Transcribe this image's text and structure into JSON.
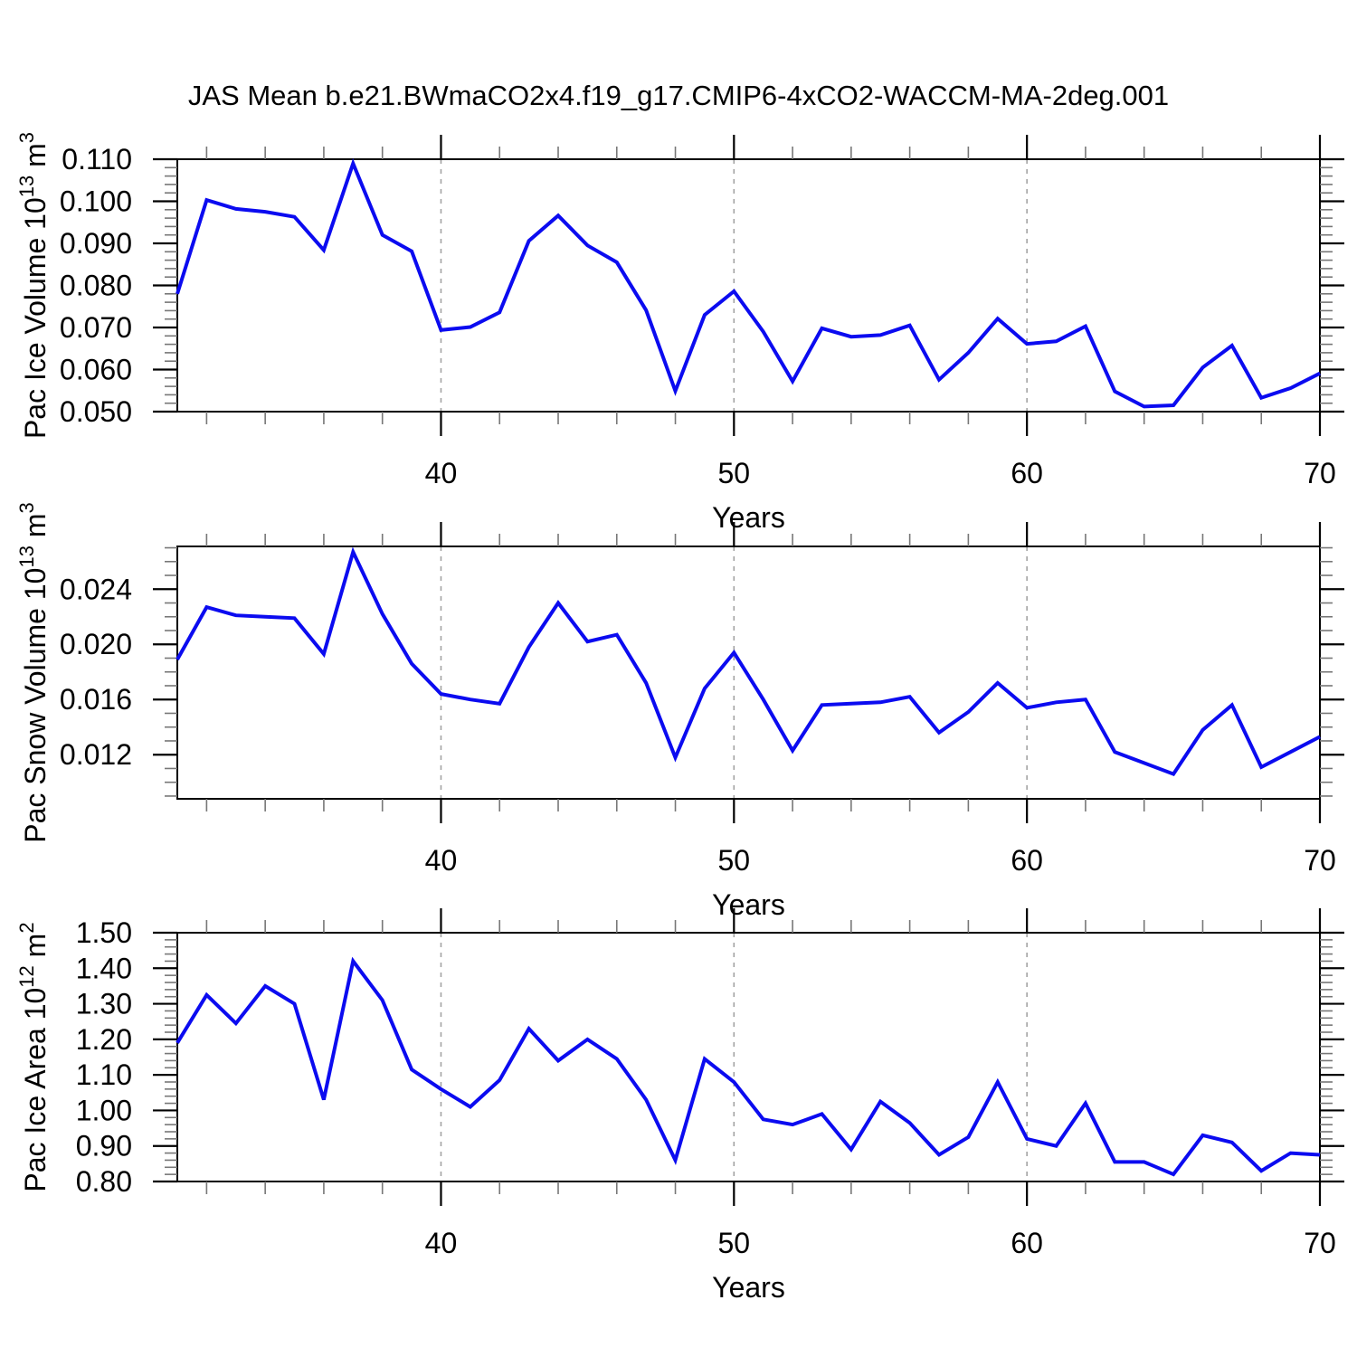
{
  "title": "JAS Mean b.e21.BWmaCO2x4.f19_g17.CMIP6-4xCO2-WACCM-MA-2deg.001",
  "colors": {
    "line": "#0b0bf0",
    "axis": "#000000",
    "minor_tick": "#777777",
    "grid": "#a3a3a3",
    "background": "#ffffff"
  },
  "x_axis": {
    "label": "Years",
    "start_year": 31,
    "end_year": 70,
    "major_ticks": [
      40,
      50,
      60,
      70
    ],
    "minor_step": 2,
    "grid_years": [
      40,
      50,
      60
    ]
  },
  "chart_data": [
    {
      "type": "line",
      "name": "pac-ice-volume",
      "title": "",
      "ylabel": "Pac Ice Volume 10^13^ m^3^",
      "xlabel": "Years",
      "ylim": [
        0.05,
        0.11
      ],
      "yticks": [
        0.05,
        0.06,
        0.07,
        0.08,
        0.09,
        0.1,
        0.11
      ],
      "ytick_decimals": 3,
      "y_minor_step": 0.002,
      "legend": "none",
      "grid": "vertical-dashed",
      "x": [
        31,
        32,
        33,
        34,
        35,
        36,
        37,
        38,
        39,
        40,
        41,
        42,
        43,
        44,
        45,
        46,
        47,
        48,
        49,
        50,
        51,
        52,
        53,
        54,
        55,
        56,
        57,
        58,
        59,
        60,
        61,
        62,
        63,
        64,
        65,
        66,
        67,
        68,
        69,
        70
      ],
      "values": [
        0.078,
        0.1003,
        0.0982,
        0.0975,
        0.0963,
        0.0884,
        0.109,
        0.092,
        0.0881,
        0.0694,
        0.0701,
        0.0736,
        0.0906,
        0.0966,
        0.0895,
        0.0855,
        0.0741,
        0.0549,
        0.073,
        0.0786,
        0.069,
        0.0572,
        0.0698,
        0.0678,
        0.0682,
        0.0705,
        0.0576,
        0.064,
        0.0721,
        0.0661,
        0.0667,
        0.0703,
        0.0548,
        0.0512,
        0.0515,
        0.0605,
        0.0657,
        0.0533,
        0.0556,
        0.0591
      ]
    },
    {
      "type": "line",
      "name": "pac-snow-volume",
      "title": "",
      "ylabel": "Pac Snow Volume 10^13^ m^3^",
      "xlabel": "Years",
      "ylim": [
        0.0088,
        0.0271
      ],
      "yticks": [
        0.012,
        0.016,
        0.02,
        0.024
      ],
      "ytick_decimals": 3,
      "y_minor_step": 0.001,
      "legend": "none",
      "grid": "vertical-dashed",
      "x": [
        31,
        32,
        33,
        34,
        35,
        36,
        37,
        38,
        39,
        40,
        41,
        42,
        43,
        44,
        45,
        46,
        47,
        48,
        49,
        50,
        51,
        52,
        53,
        54,
        55,
        56,
        57,
        58,
        59,
        60,
        61,
        62,
        63,
        64,
        65,
        66,
        67,
        68,
        69,
        70
      ],
      "values": [
        0.0189,
        0.0227,
        0.0221,
        0.022,
        0.0219,
        0.0193,
        0.0267,
        0.0222,
        0.0186,
        0.0164,
        0.016,
        0.0157,
        0.0198,
        0.023,
        0.0202,
        0.0207,
        0.0172,
        0.0118,
        0.0168,
        0.0194,
        0.016,
        0.0123,
        0.0156,
        0.0157,
        0.0158,
        0.0162,
        0.0136,
        0.0151,
        0.0172,
        0.0154,
        0.0158,
        0.016,
        0.0122,
        0.0114,
        0.0106,
        0.0138,
        0.0156,
        0.0111,
        0.0122,
        0.0133
      ]
    },
    {
      "type": "line",
      "name": "pac-ice-area",
      "title": "",
      "ylabel": "Pac Ice Area 10^12^ m^2^",
      "xlabel": "Years",
      "ylim": [
        0.8,
        1.5
      ],
      "yticks": [
        0.8,
        0.9,
        1.0,
        1.1,
        1.2,
        1.3,
        1.4,
        1.5
      ],
      "ytick_decimals": 2,
      "y_minor_step": 0.02,
      "legend": "none",
      "grid": "vertical-dashed",
      "x": [
        31,
        32,
        33,
        34,
        35,
        36,
        37,
        38,
        39,
        40,
        41,
        42,
        43,
        44,
        45,
        46,
        47,
        48,
        49,
        50,
        51,
        52,
        53,
        54,
        55,
        56,
        57,
        58,
        59,
        60,
        61,
        62,
        63,
        64,
        65,
        66,
        67,
        68,
        69,
        70
      ],
      "values": [
        1.19,
        1.325,
        1.245,
        1.35,
        1.3,
        1.03,
        1.42,
        1.31,
        1.115,
        1.06,
        1.01,
        1.085,
        1.23,
        1.14,
        1.2,
        1.145,
        1.03,
        0.86,
        1.145,
        1.08,
        0.975,
        0.96,
        0.99,
        0.89,
        1.025,
        0.965,
        0.875,
        0.925,
        1.08,
        0.92,
        0.9,
        1.02,
        0.855,
        0.855,
        0.82,
        0.93,
        0.91,
        0.83,
        0.88,
        0.875
      ]
    }
  ]
}
